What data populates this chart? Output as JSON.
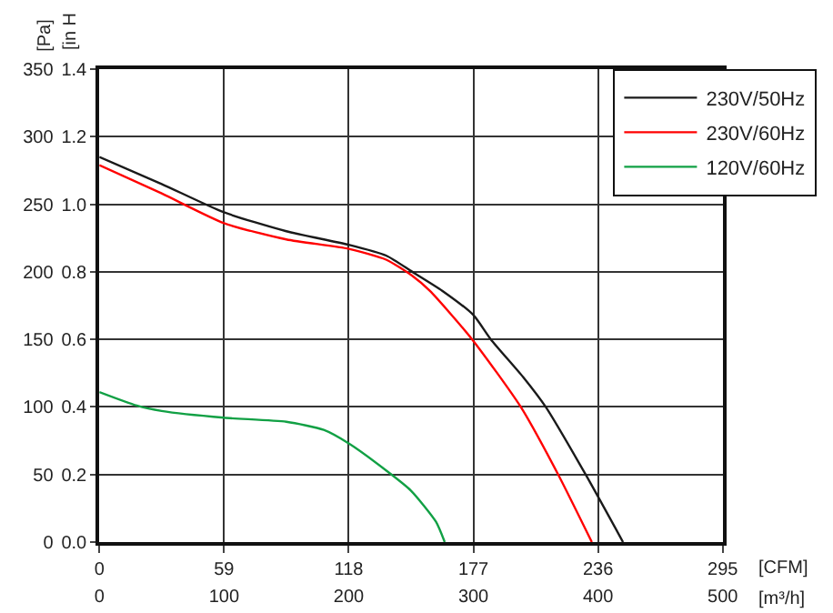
{
  "chart_data": {
    "type": "line",
    "xlabel": "[m³/h]",
    "x2label": "[CFM]",
    "ylabel": "[Pa]",
    "y2label": "[in H",
    "xlim": [
      0,
      500
    ],
    "xticks": [
      0,
      100,
      200,
      300,
      400,
      500
    ],
    "x2lim": [
      0,
      295
    ],
    "x2ticks": [
      0,
      59,
      118,
      177,
      236,
      295
    ],
    "ylim": [
      0,
      350
    ],
    "yticks": [
      0,
      50,
      100,
      150,
      200,
      250,
      300,
      350
    ],
    "y2lim": [
      0,
      1.4
    ],
    "y2ticks": [
      {
        "value": 0,
        "label": "0.0"
      },
      0.2,
      0.4,
      0.6,
      0.8,
      {
        "value": 1,
        "label": "1.0"
      },
      1.2,
      1.4
    ],
    "grid": true,
    "legend": "top right",
    "line_style": "solid",
    "marker": "none",
    "series": [
      {
        "name": "230V/50Hz",
        "color": "#1a1a1a",
        "x": [
          0,
          50,
          100,
          150,
          200,
          230,
          251,
          275,
          300,
          314,
          340,
          358,
          390,
          420
        ],
        "values": [
          285,
          265,
          244,
          230,
          220,
          212,
          200,
          186,
          168,
          150,
          122,
          100,
          50,
          0
        ]
      },
      {
        "name": "230V/60Hz",
        "color": "#ff0000",
        "x": [
          0,
          50,
          100,
          150,
          200,
          230,
          251,
          265,
          299,
          338,
          368,
          395
        ],
        "values": [
          279,
          258,
          236,
          224,
          217,
          209,
          197,
          186,
          150,
          100,
          50,
          0
        ]
      },
      {
        "name": "120V/60Hz",
        "color": "#11a044",
        "x": [
          0,
          30,
          50,
          100,
          150,
          180,
          200,
          230,
          250,
          270,
          277
        ],
        "values": [
          111,
          101,
          97,
          92,
          89,
          83,
          73,
          53,
          38,
          15,
          0
        ]
      }
    ]
  }
}
